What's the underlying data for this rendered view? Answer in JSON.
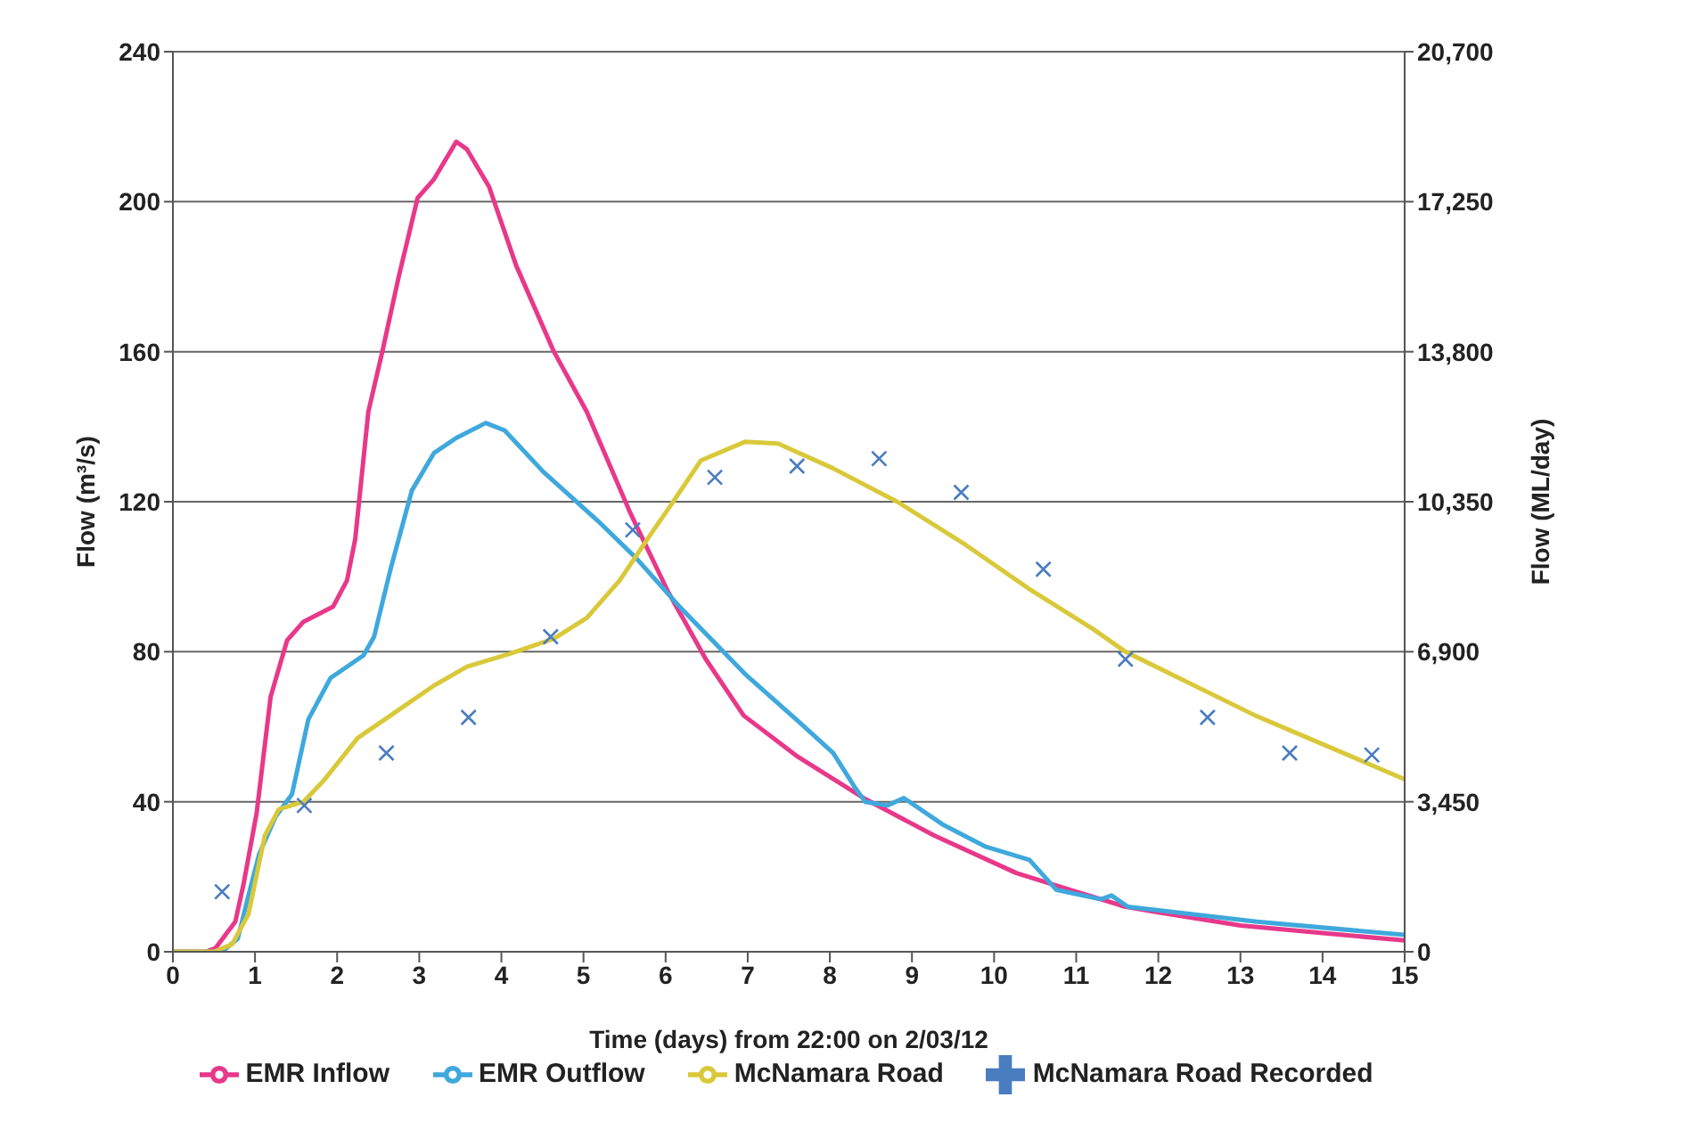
{
  "chart_data": {
    "type": "line",
    "xlabel": "Time (days) from 22:00 on 2/03/12",
    "ylabel": "Flow (m³/s)",
    "y2label": "Flow (ML/day)",
    "xlim": [
      0,
      15
    ],
    "xticks": [
      0,
      1,
      2,
      3,
      4,
      5,
      6,
      7,
      8,
      9,
      10,
      11,
      12,
      13,
      14,
      15
    ],
    "ylim": [
      0,
      240
    ],
    "yticks": [
      0,
      40,
      80,
      120,
      160,
      200,
      240
    ],
    "y2lim": [
      0,
      20700
    ],
    "y2ticks": [
      {
        "value": 0,
        "label": "0"
      },
      {
        "value": 3450,
        "label": "3,450"
      },
      {
        "value": 6900,
        "label": "6,900"
      },
      {
        "value": 10350,
        "label": "10,350"
      },
      {
        "value": 13800,
        "label": "13,800"
      },
      {
        "value": 17250,
        "label": "17,250"
      },
      {
        "value": 20700,
        "label": "20,700"
      }
    ],
    "grid": "y",
    "legend": "bottom",
    "line_style": "solid",
    "series": [
      {
        "name": "EMR Inflow",
        "color": "#e8388a",
        "marker": "none",
        "x": [
          0,
          0.4,
          0.52,
          0.76,
          0.86,
          1.02,
          1.19,
          1.39,
          1.59,
          1.95,
          2.12,
          2.22,
          2.38,
          2.55,
          2.75,
          2.98,
          3.18,
          3.45,
          3.58,
          3.85,
          4.18,
          4.64,
          5.04,
          5.57,
          6.03,
          6.49,
          6.95,
          7.61,
          8.41,
          9.27,
          10.27,
          10.93,
          11.6,
          12,
          13,
          14,
          15
        ],
        "values": [
          0,
          0,
          1,
          8,
          18,
          37,
          68,
          83,
          88,
          92,
          99,
          110,
          144,
          160,
          180,
          201,
          206,
          216,
          214,
          204,
          183,
          160,
          144,
          117,
          96,
          78,
          63,
          52,
          41,
          31,
          21,
          16.5,
          12,
          10.5,
          7,
          5,
          3
        ]
      },
      {
        "name": "EMR Outflow",
        "color": "#3fa8dc",
        "marker": "none",
        "x": [
          0,
          0.6,
          0.79,
          0.92,
          1.05,
          1.25,
          1.45,
          1.65,
          1.92,
          2.32,
          2.45,
          2.65,
          2.91,
          3.18,
          3.45,
          3.81,
          4.04,
          4.51,
          5.17,
          5.64,
          6.17,
          6.97,
          7.64,
          8.04,
          8.3,
          8.43,
          8.7,
          8.9,
          9.37,
          9.9,
          10.43,
          10.76,
          11.3,
          11.43,
          11.63,
          13.2,
          15
        ],
        "values": [
          0,
          0,
          3.5,
          15,
          26,
          36,
          42,
          62,
          73,
          79,
          84,
          102,
          123,
          133,
          137,
          141,
          139,
          128,
          115,
          105,
          92,
          74,
          61,
          53,
          44,
          40,
          39,
          41,
          34,
          28,
          24.5,
          16.5,
          14,
          15,
          12,
          8,
          4.5
        ]
      },
      {
        "name": "McNamara Road",
        "color": "#d9c93a",
        "marker": "none",
        "x": [
          0,
          0.5,
          0.72,
          0.92,
          1.12,
          1.29,
          1.59,
          1.85,
          2.25,
          2.65,
          3.18,
          3.58,
          4.11,
          4.64,
          5.04,
          5.44,
          5.84,
          6.03,
          6.43,
          6.97,
          7.37,
          8.03,
          8.82,
          9.62,
          10.41,
          11.21,
          11.6,
          13.18,
          15
        ],
        "values": [
          0,
          0,
          2,
          10,
          31,
          38,
          40,
          46,
          57,
          63,
          71,
          76,
          79.5,
          83.5,
          89,
          99,
          112,
          118,
          131,
          136,
          135.5,
          129,
          120,
          109,
          97,
          86,
          80,
          63,
          46
        ]
      },
      {
        "name": "McNamara Road Recorded",
        "type": "scatter",
        "color": "#4a7cc0",
        "marker": "cross",
        "x": [
          0.6,
          1.6,
          2.6,
          3.6,
          4.6,
          5.6,
          6.6,
          7.6,
          8.6,
          9.6,
          10.6,
          11.6,
          12.6,
          13.6,
          14.6
        ],
        "values": [
          16,
          39,
          53,
          62.5,
          84,
          112.5,
          126.5,
          129.5,
          131.5,
          122.5,
          102,
          78,
          62.5,
          53,
          52.5
        ]
      }
    ]
  }
}
